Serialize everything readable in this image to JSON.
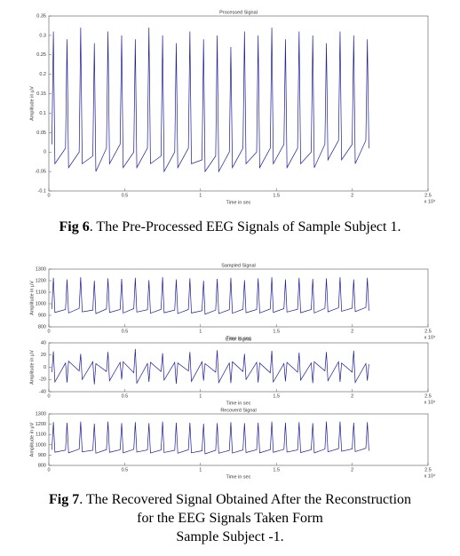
{
  "chart_data": [
    {
      "type": "line",
      "title": "Processed Signal",
      "xlabel": "Time in sec",
      "ylabel": "Amplitude in µV",
      "x_multiplier": "x 10⁴",
      "xlim": [
        0,
        2.5
      ],
      "xticks": [
        0,
        0.5,
        1,
        1.5,
        2,
        2.5
      ],
      "ylim": [
        -0.1,
        0.35
      ],
      "yticks": [
        -0.1,
        -0.05,
        0,
        0.05,
        0.1,
        0.15,
        0.2,
        0.25,
        0.3,
        0.35
      ],
      "color": "#1c1c9c",
      "x": [
        0.02,
        0.03,
        0.04,
        0.11,
        0.12,
        0.13,
        0.2,
        0.21,
        0.22,
        0.29,
        0.3,
        0.31,
        0.38,
        0.39,
        0.4,
        0.47,
        0.48,
        0.49,
        0.56,
        0.57,
        0.58,
        0.65,
        0.66,
        0.67,
        0.74,
        0.75,
        0.76,
        0.83,
        0.84,
        0.85,
        0.92,
        0.93,
        0.94,
        1.01,
        1.02,
        1.03,
        1.1,
        1.11,
        1.12,
        1.19,
        1.2,
        1.21,
        1.28,
        1.29,
        1.3,
        1.37,
        1.38,
        1.39,
        1.46,
        1.47,
        1.48,
        1.55,
        1.56,
        1.57,
        1.64,
        1.65,
        1.66,
        1.73,
        1.74,
        1.75,
        1.82,
        1.83,
        1.84,
        1.91,
        1.92,
        1.93,
        2.0,
        2.01,
        2.02,
        2.09,
        2.1,
        2.11
      ],
      "values": [
        0.02,
        0.31,
        -0.03,
        0.01,
        0.29,
        -0.04,
        0.0,
        0.32,
        -0.03,
        -0.01,
        0.28,
        -0.05,
        0.01,
        0.31,
        -0.03,
        0.02,
        0.3,
        -0.04,
        0.0,
        0.29,
        -0.04,
        0.01,
        0.32,
        -0.03,
        -0.01,
        0.3,
        -0.05,
        0.0,
        0.28,
        -0.04,
        0.01,
        0.31,
        -0.03,
        -0.02,
        0.29,
        -0.05,
        -0.01,
        0.3,
        -0.05,
        0.0,
        0.27,
        -0.04,
        0.01,
        0.31,
        -0.03,
        0.0,
        0.3,
        -0.04,
        0.01,
        0.32,
        -0.03,
        0.02,
        0.29,
        -0.04,
        0.01,
        0.31,
        -0.03,
        0.0,
        0.3,
        -0.04,
        0.02,
        0.28,
        -0.02,
        0.03,
        0.31,
        -0.02,
        0.02,
        0.3,
        -0.03,
        0.03,
        0.29,
        0.01
      ]
    },
    {
      "type": "line",
      "title": "Sampled Signal",
      "xlabel": "Time in sec",
      "ylabel": "Amplitude in µV",
      "x_multiplier": "x 10⁴",
      "xlim": [
        0,
        2.5
      ],
      "xticks": [
        0,
        0.5,
        1,
        1.5,
        2,
        2.5
      ],
      "ylim": [
        800,
        1300
      ],
      "yticks": [
        800,
        900,
        1000,
        1100,
        1200,
        1300
      ],
      "color": "#1c1c9c",
      "x": [
        0.02,
        0.03,
        0.04,
        0.11,
        0.12,
        0.13,
        0.2,
        0.21,
        0.22,
        0.29,
        0.3,
        0.31,
        0.38,
        0.39,
        0.4,
        0.47,
        0.48,
        0.49,
        0.56,
        0.57,
        0.58,
        0.65,
        0.66,
        0.67,
        0.74,
        0.75,
        0.76,
        0.83,
        0.84,
        0.85,
        0.92,
        0.93,
        0.94,
        1.01,
        1.02,
        1.03,
        1.1,
        1.11,
        1.12,
        1.19,
        1.2,
        1.21,
        1.28,
        1.29,
        1.3,
        1.37,
        1.38,
        1.39,
        1.46,
        1.47,
        1.48,
        1.55,
        1.56,
        1.57,
        1.64,
        1.65,
        1.66,
        1.73,
        1.74,
        1.75,
        1.82,
        1.83,
        1.84,
        1.91,
        1.92,
        1.93,
        2.0,
        2.01,
        2.02,
        2.09,
        2.1,
        2.11
      ],
      "values": [
        955,
        1225,
        925,
        950,
        1210,
        920,
        960,
        1230,
        930,
        945,
        1200,
        915,
        955,
        1220,
        925,
        950,
        1215,
        920,
        958,
        1225,
        928,
        948,
        1205,
        918,
        952,
        1230,
        922,
        945,
        1210,
        915,
        950,
        1220,
        920,
        940,
        1200,
        910,
        945,
        1215,
        915,
        948,
        1225,
        918,
        952,
        1205,
        922,
        950,
        1220,
        920,
        955,
        1230,
        925,
        958,
        1210,
        928,
        952,
        1225,
        922,
        950,
        1215,
        920,
        960,
        1220,
        930,
        965,
        1230,
        935,
        962,
        1210,
        932,
        968,
        1225,
        940
      ]
    },
    {
      "type": "line",
      "title": "Error Signal",
      "xlabel": "Time in sec",
      "ylabel": "Amplitude in µV",
      "x_multiplier": "x 10⁴",
      "xlim": [
        0,
        2.5
      ],
      "xticks": [
        0,
        0.5,
        1,
        1.5,
        2,
        2.5
      ],
      "ylim": [
        -40,
        40
      ],
      "yticks": [
        -40,
        -20,
        0,
        20,
        40
      ],
      "color": "#1c1c9c",
      "x": [
        0.02,
        0.03,
        0.04,
        0.11,
        0.12,
        0.13,
        0.2,
        0.21,
        0.22,
        0.29,
        0.3,
        0.31,
        0.38,
        0.39,
        0.4,
        0.47,
        0.48,
        0.49,
        0.56,
        0.57,
        0.58,
        0.65,
        0.66,
        0.67,
        0.74,
        0.75,
        0.76,
        0.83,
        0.84,
        0.85,
        0.92,
        0.93,
        0.94,
        1.01,
        1.02,
        1.03,
        1.1,
        1.11,
        1.12,
        1.19,
        1.2,
        1.21,
        1.28,
        1.29,
        1.3,
        1.37,
        1.38,
        1.39,
        1.46,
        1.47,
        1.48,
        1.55,
        1.56,
        1.57,
        1.64,
        1.65,
        1.66,
        1.73,
        1.74,
        1.75,
        1.82,
        1.83,
        1.84,
        1.91,
        1.92,
        1.93,
        2.0,
        2.01,
        2.02,
        2.09,
        2.1,
        2.11
      ],
      "values": [
        -8,
        26,
        -24,
        7,
        -25,
        10,
        -6,
        22,
        -20,
        9,
        -28,
        6,
        -7,
        25,
        -22,
        8,
        -20,
        9,
        -9,
        30,
        -26,
        6,
        -24,
        8,
        -7,
        23,
        -21,
        8,
        -27,
        7,
        -6,
        25,
        -23,
        9,
        -22,
        6,
        -8,
        28,
        -25,
        7,
        -26,
        9,
        -7,
        22,
        -20,
        8,
        -25,
        7,
        -9,
        27,
        -24,
        6,
        -23,
        8,
        -8,
        24,
        -21,
        7,
        -26,
        9,
        -6,
        25,
        -22,
        9,
        -24,
        7,
        -8,
        27,
        -25,
        6,
        -22,
        5
      ]
    },
    {
      "type": "line",
      "title": "Recoverd Signal",
      "xlabel": "Time in sec",
      "ylabel": "Amplitude in µV",
      "x_multiplier": "x 10⁴",
      "xlim": [
        0,
        2.5
      ],
      "xticks": [
        0,
        0.5,
        1,
        1.5,
        2,
        2.5
      ],
      "ylim": [
        800,
        1300
      ],
      "yticks": [
        800,
        900,
        1000,
        1100,
        1200,
        1300
      ],
      "color": "#1c1c9c",
      "x": [
        0.02,
        0.03,
        0.04,
        0.11,
        0.12,
        0.13,
        0.2,
        0.21,
        0.22,
        0.29,
        0.3,
        0.31,
        0.38,
        0.39,
        0.4,
        0.47,
        0.48,
        0.49,
        0.56,
        0.57,
        0.58,
        0.65,
        0.66,
        0.67,
        0.74,
        0.75,
        0.76,
        0.83,
        0.84,
        0.85,
        0.92,
        0.93,
        0.94,
        1.01,
        1.02,
        1.03,
        1.1,
        1.11,
        1.12,
        1.19,
        1.2,
        1.21,
        1.28,
        1.29,
        1.3,
        1.37,
        1.38,
        1.39,
        1.46,
        1.47,
        1.48,
        1.55,
        1.56,
        1.57,
        1.64,
        1.65,
        1.66,
        1.73,
        1.74,
        1.75,
        1.82,
        1.83,
        1.84,
        1.91,
        1.92,
        1.93,
        2.0,
        2.01,
        2.02,
        2.09,
        2.1,
        2.11
      ],
      "values": [
        952,
        1220,
        928,
        948,
        1215,
        922,
        958,
        1225,
        932,
        947,
        1205,
        918,
        953,
        1225,
        927,
        952,
        1210,
        922,
        956,
        1220,
        930,
        950,
        1210,
        920,
        950,
        1225,
        925,
        947,
        1215,
        918,
        952,
        1215,
        922,
        942,
        1205,
        912,
        947,
        1210,
        918,
        946,
        1220,
        920,
        950,
        1210,
        925,
        952,
        1215,
        922,
        953,
        1225,
        927,
        956,
        1215,
        930,
        950,
        1220,
        925,
        952,
        1210,
        922,
        958,
        1225,
        932,
        963,
        1225,
        937,
        960,
        1215,
        934,
        966,
        1220,
        942
      ]
    }
  ],
  "captions": [
    {
      "label": "Fig 6",
      "lines": [
        ". The Pre-Processed EEG Signals of Sample Subject 1."
      ]
    },
    {
      "label": "Fig 7",
      "lines": [
        ". The Recovered Signal Obtained After the Reconstruction",
        "for the EEG Signals Taken Form",
        "Sample Subject -1."
      ]
    }
  ]
}
